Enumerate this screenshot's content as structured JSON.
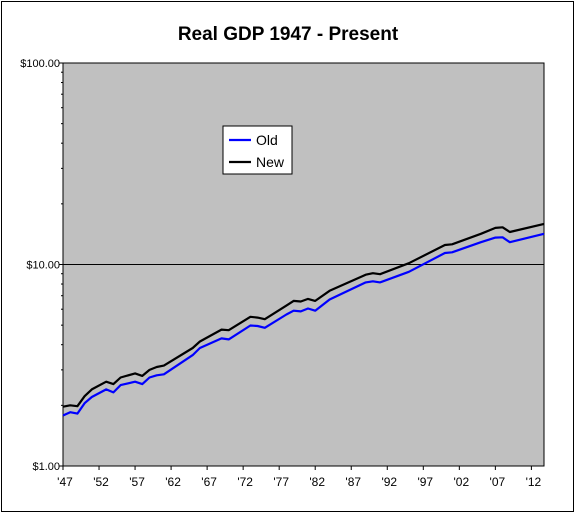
{
  "chart_data": {
    "type": "line",
    "title": "Real GDP 1947 - Present",
    "xlabel": "",
    "ylabel": "",
    "y_scale": "log",
    "ylim": [
      1,
      100
    ],
    "xlim": [
      1947,
      2013.75
    ],
    "y_tick_labels": [
      "$1.00",
      "$10.00",
      "$100.00"
    ],
    "y_tick_values": [
      1,
      10,
      100
    ],
    "x_tick_labels": [
      "'47",
      "'52",
      "'57",
      "'62",
      "'67",
      "'72",
      "'77",
      "'82",
      "'87",
      "'92",
      "'97",
      "'02",
      "'07",
      "'12"
    ],
    "x_tick_values": [
      1947,
      1952,
      1957,
      1962,
      1967,
      1972,
      1977,
      1982,
      1987,
      1992,
      1997,
      2002,
      2007,
      2012
    ],
    "gridlines": [
      10
    ],
    "plot_background": "#c0c0c0",
    "legend_position": "upper-left inside plot",
    "series": [
      {
        "name": "Old",
        "color": "#0000ff",
        "x": [
          1947,
          1948,
          1949,
          1950,
          1951,
          1953,
          1954,
          1955,
          1957,
          1958,
          1959,
          1960,
          1961,
          1965,
          1966,
          1969,
          1970,
          1973,
          1974,
          1975,
          1978,
          1979,
          1980,
          1981,
          1982,
          1984,
          1989,
          1990,
          1991,
          1995,
          2000,
          2001,
          2005,
          2007,
          2008,
          2009,
          2013.75
        ],
        "y": [
          1.78,
          1.85,
          1.82,
          2.05,
          2.2,
          2.4,
          2.32,
          2.52,
          2.62,
          2.55,
          2.75,
          2.82,
          2.85,
          3.55,
          3.85,
          4.3,
          4.25,
          4.98,
          4.95,
          4.85,
          5.65,
          5.9,
          5.85,
          6.05,
          5.9,
          6.7,
          8.15,
          8.25,
          8.15,
          9.2,
          11.4,
          11.5,
          12.9,
          13.6,
          13.65,
          12.9,
          14.2
        ]
      },
      {
        "name": "New",
        "color": "#000000",
        "x": [
          1947,
          1948,
          1949,
          1950,
          1951,
          1953,
          1954,
          1955,
          1957,
          1958,
          1959,
          1960,
          1961,
          1965,
          1966,
          1969,
          1970,
          1973,
          1974,
          1975,
          1978,
          1979,
          1980,
          1981,
          1982,
          1984,
          1989,
          1990,
          1991,
          1995,
          2000,
          2001,
          2005,
          2007,
          2008,
          2009,
          2013.75
        ],
        "y": [
          1.97,
          2.0,
          1.98,
          2.22,
          2.4,
          2.62,
          2.55,
          2.75,
          2.88,
          2.8,
          3.0,
          3.1,
          3.15,
          3.85,
          4.15,
          4.75,
          4.72,
          5.5,
          5.45,
          5.35,
          6.25,
          6.6,
          6.55,
          6.75,
          6.6,
          7.4,
          8.9,
          9.05,
          8.95,
          10.15,
          12.5,
          12.6,
          14.2,
          15.2,
          15.3,
          14.5,
          15.9
        ]
      }
    ]
  }
}
